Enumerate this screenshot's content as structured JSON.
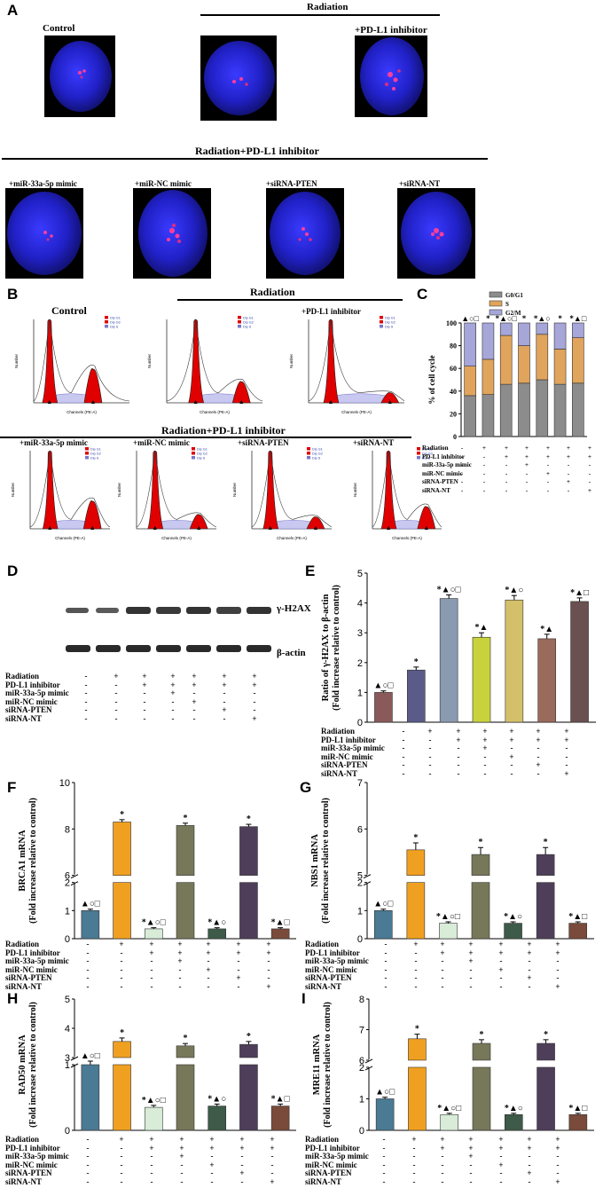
{
  "panels": {
    "A": "A",
    "B": "B",
    "C": "C",
    "D": "D",
    "E": "E",
    "F": "F",
    "G": "G",
    "H": "H",
    "I": "I"
  },
  "panelA": {
    "title_radiation": "Radiation",
    "title_radpd": "Radiation+PD-L1 inhibitor",
    "top_labels": [
      "Control",
      "",
      "+PD-L1 inhibitor"
    ],
    "bottom_labels": [
      "+miR-33a-5p mimic",
      "+miR-NC mimic",
      "+siRNA-PTEN",
      "+siRNA-NT"
    ]
  },
  "panelB": {
    "title_radiation": "Radiation",
    "title_radpd": "Radiation+PD-L1 inhibitor",
    "top_labels": [
      "Control",
      "",
      "+PD-L1 inhibitor"
    ],
    "bottom_labels": [
      "+miR-33a-5p mimic",
      "+miR-NC mimic",
      "+siRNA-PTEN",
      "+siRNA-NT"
    ],
    "x_axis": "Channels (PE-A)",
    "y_axis": "Number",
    "legend": [
      "Dip G1",
      "Dip G2",
      "Dip S"
    ]
  },
  "panelD": {
    "bands": [
      "γ-H2AX",
      "β-actin"
    ]
  },
  "treatment_table": {
    "rows": [
      "Radiation",
      "PD-L1 inhibitor",
      "miR-33a-5p mimic",
      "miR-NC mimic",
      "siRNA-PTEN",
      "siRNA-NT"
    ],
    "signs": [
      [
        "-",
        "+",
        "+",
        "+",
        "+",
        "+",
        "+"
      ],
      [
        "-",
        "-",
        "+",
        "+",
        "+",
        "+",
        "+"
      ],
      [
        "-",
        "-",
        "-",
        "+",
        "-",
        "-",
        "-"
      ],
      [
        "-",
        "-",
        "-",
        "-",
        "+",
        "-",
        "-"
      ],
      [
        "-",
        "-",
        "-",
        "-",
        "-",
        "+",
        "-"
      ],
      [
        "-",
        "-",
        "-",
        "-",
        "-",
        "-",
        "+"
      ]
    ]
  },
  "chart_data": [
    {
      "id": "C",
      "type": "bar",
      "stacked": true,
      "ylabel": "% of cell cycle",
      "ylim": [
        0,
        100
      ],
      "yticks": [
        0,
        20,
        40,
        60,
        80,
        100
      ],
      "series": [
        {
          "name": "G0/G1",
          "color": "#8c8c8c",
          "values": [
            36,
            37,
            46,
            47,
            50,
            46,
            47
          ]
        },
        {
          "name": "S",
          "color": "#e0a45c",
          "values": [
            26,
            31,
            43,
            33,
            40,
            31,
            40
          ]
        },
        {
          "name": "G2/M",
          "color": "#a6a6d9",
          "values": [
            38,
            32,
            11,
            20,
            10,
            23,
            13
          ]
        }
      ],
      "annotations": [
        "▲○□",
        "*",
        "*▲○□",
        "*",
        "*▲○",
        "*",
        "*▲□"
      ]
    },
    {
      "id": "E",
      "type": "bar",
      "ylabel": "Ratio of γ-H2AX to β-actin (Fold increase relative to control)",
      "ylim": [
        0,
        5
      ],
      "yticks": [
        0,
        1,
        2,
        3,
        4,
        5
      ],
      "values": [
        1.0,
        1.75,
        4.15,
        2.85,
        4.1,
        2.8,
        4.05
      ],
      "errors": [
        0.05,
        0.1,
        0.12,
        0.15,
        0.15,
        0.15,
        0.12
      ],
      "colors": [
        "#8a5a5a",
        "#5b5b8a",
        "#8a9ab0",
        "#c8d23c",
        "#d4c06a",
        "#9a6a5a",
        "#6a5050"
      ],
      "annotations": [
        "▲○□",
        "*",
        "*▲○□",
        "*▲",
        "*▲○",
        "*▲",
        "*▲□"
      ]
    },
    {
      "id": "F",
      "type": "bar",
      "broken_axis": true,
      "ylabel": "BRCA1 mRNA (Fold increase relative to control)",
      "yticks": [
        0,
        1,
        2,
        6,
        8,
        10
      ],
      "values": [
        1.0,
        8.3,
        0.35,
        8.15,
        0.35,
        8.1,
        0.35
      ],
      "errors": [
        0.05,
        0.1,
        0.04,
        0.1,
        0.04,
        0.1,
        0.04
      ],
      "colors": [
        "#4a7a94",
        "#f0a020",
        "#d8ecd8",
        "#77775a",
        "#3e5a48",
        "#4e3e5a",
        "#7a4a3a"
      ],
      "annotations": [
        "▲○□",
        "*",
        "*▲○□",
        "*",
        "*▲○",
        "*",
        "*▲□"
      ]
    },
    {
      "id": "G",
      "type": "bar",
      "broken_axis": true,
      "ylabel": "NBS1 mRNA (Fold increase relative to control)",
      "yticks": [
        0,
        1,
        2,
        5,
        6,
        7
      ],
      "values": [
        1.0,
        5.55,
        0.55,
        5.45,
        0.55,
        5.45,
        0.55
      ],
      "errors": [
        0.05,
        0.15,
        0.05,
        0.15,
        0.05,
        0.15,
        0.05
      ],
      "colors": [
        "#4a7a94",
        "#f0a020",
        "#d8ecd8",
        "#77775a",
        "#3e5a48",
        "#4e3e5a",
        "#7a4a3a"
      ],
      "annotations": [
        "▲○□",
        "*",
        "*▲○□",
        "*",
        "*▲○",
        "*",
        "*▲□"
      ]
    },
    {
      "id": "H",
      "type": "bar",
      "broken_axis": true,
      "ylabel": "RAD50 mRNA (Fold increase relative to control)",
      "yticks": [
        0,
        1,
        3,
        4,
        5
      ],
      "values": [
        1.0,
        3.55,
        0.35,
        3.4,
        0.37,
        3.45,
        0.37
      ],
      "errors": [
        0.04,
        0.12,
        0.03,
        0.08,
        0.03,
        0.1,
        0.03
      ],
      "colors": [
        "#4a7a94",
        "#f0a020",
        "#d8ecd8",
        "#77775a",
        "#3e5a48",
        "#4e3e5a",
        "#7a4a3a"
      ],
      "annotations": [
        "▲○□",
        "*",
        "*▲○□",
        "*",
        "*▲○",
        "*",
        "*▲□"
      ]
    },
    {
      "id": "I",
      "type": "bar",
      "broken_axis": true,
      "ylabel": "MRE11 mRNA (Fold increase relative to control)",
      "yticks": [
        0,
        1,
        2,
        6,
        7,
        8
      ],
      "values": [
        1.0,
        6.7,
        0.5,
        6.55,
        0.5,
        6.55,
        0.5
      ],
      "errors": [
        0.05,
        0.15,
        0.04,
        0.12,
        0.04,
        0.12,
        0.04
      ],
      "colors": [
        "#4a7a94",
        "#f0a020",
        "#d8ecd8",
        "#77775a",
        "#3e5a48",
        "#4e3e5a",
        "#7a4a3a"
      ],
      "annotations": [
        "▲○□",
        "*",
        "*▲○□",
        "*",
        "*▲○",
        "*",
        "*▲□"
      ]
    }
  ]
}
